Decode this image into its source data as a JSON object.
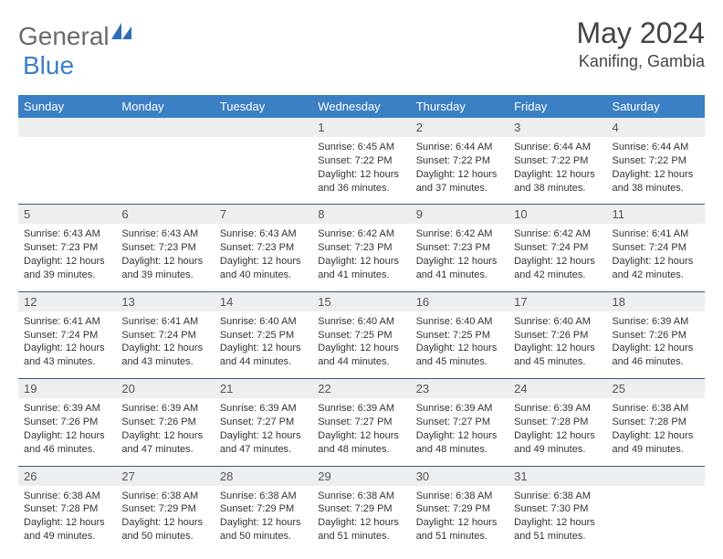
{
  "brand": {
    "part1": "General",
    "part2": "Blue",
    "color_gray": "#6a6a6a",
    "color_blue": "#3b7fc4"
  },
  "title": {
    "month": "May 2024",
    "location": "Kanifing, Gambia"
  },
  "colors": {
    "header_bg": "#3b7fc4",
    "header_text": "#ffffff",
    "num_bg": "#eceeef",
    "num_border": "#3b5a7a",
    "body_text": "#333333"
  },
  "weekdays": [
    "Sunday",
    "Monday",
    "Tuesday",
    "Wednesday",
    "Thursday",
    "Friday",
    "Saturday"
  ],
  "weeks": [
    {
      "nums": [
        "",
        "",
        "",
        "1",
        "2",
        "3",
        "4"
      ],
      "cells": [
        null,
        null,
        null,
        {
          "sunrise": "Sunrise: 6:45 AM",
          "sunset": "Sunset: 7:22 PM",
          "day1": "Daylight: 12 hours",
          "day2": "and 36 minutes."
        },
        {
          "sunrise": "Sunrise: 6:44 AM",
          "sunset": "Sunset: 7:22 PM",
          "day1": "Daylight: 12 hours",
          "day2": "and 37 minutes."
        },
        {
          "sunrise": "Sunrise: 6:44 AM",
          "sunset": "Sunset: 7:22 PM",
          "day1": "Daylight: 12 hours",
          "day2": "and 38 minutes."
        },
        {
          "sunrise": "Sunrise: 6:44 AM",
          "sunset": "Sunset: 7:22 PM",
          "day1": "Daylight: 12 hours",
          "day2": "and 38 minutes."
        }
      ]
    },
    {
      "nums": [
        "5",
        "6",
        "7",
        "8",
        "9",
        "10",
        "11"
      ],
      "cells": [
        {
          "sunrise": "Sunrise: 6:43 AM",
          "sunset": "Sunset: 7:23 PM",
          "day1": "Daylight: 12 hours",
          "day2": "and 39 minutes."
        },
        {
          "sunrise": "Sunrise: 6:43 AM",
          "sunset": "Sunset: 7:23 PM",
          "day1": "Daylight: 12 hours",
          "day2": "and 39 minutes."
        },
        {
          "sunrise": "Sunrise: 6:43 AM",
          "sunset": "Sunset: 7:23 PM",
          "day1": "Daylight: 12 hours",
          "day2": "and 40 minutes."
        },
        {
          "sunrise": "Sunrise: 6:42 AM",
          "sunset": "Sunset: 7:23 PM",
          "day1": "Daylight: 12 hours",
          "day2": "and 41 minutes."
        },
        {
          "sunrise": "Sunrise: 6:42 AM",
          "sunset": "Sunset: 7:23 PM",
          "day1": "Daylight: 12 hours",
          "day2": "and 41 minutes."
        },
        {
          "sunrise": "Sunrise: 6:42 AM",
          "sunset": "Sunset: 7:24 PM",
          "day1": "Daylight: 12 hours",
          "day2": "and 42 minutes."
        },
        {
          "sunrise": "Sunrise: 6:41 AM",
          "sunset": "Sunset: 7:24 PM",
          "day1": "Daylight: 12 hours",
          "day2": "and 42 minutes."
        }
      ]
    },
    {
      "nums": [
        "12",
        "13",
        "14",
        "15",
        "16",
        "17",
        "18"
      ],
      "cells": [
        {
          "sunrise": "Sunrise: 6:41 AM",
          "sunset": "Sunset: 7:24 PM",
          "day1": "Daylight: 12 hours",
          "day2": "and 43 minutes."
        },
        {
          "sunrise": "Sunrise: 6:41 AM",
          "sunset": "Sunset: 7:24 PM",
          "day1": "Daylight: 12 hours",
          "day2": "and 43 minutes."
        },
        {
          "sunrise": "Sunrise: 6:40 AM",
          "sunset": "Sunset: 7:25 PM",
          "day1": "Daylight: 12 hours",
          "day2": "and 44 minutes."
        },
        {
          "sunrise": "Sunrise: 6:40 AM",
          "sunset": "Sunset: 7:25 PM",
          "day1": "Daylight: 12 hours",
          "day2": "and 44 minutes."
        },
        {
          "sunrise": "Sunrise: 6:40 AM",
          "sunset": "Sunset: 7:25 PM",
          "day1": "Daylight: 12 hours",
          "day2": "and 45 minutes."
        },
        {
          "sunrise": "Sunrise: 6:40 AM",
          "sunset": "Sunset: 7:26 PM",
          "day1": "Daylight: 12 hours",
          "day2": "and 45 minutes."
        },
        {
          "sunrise": "Sunrise: 6:39 AM",
          "sunset": "Sunset: 7:26 PM",
          "day1": "Daylight: 12 hours",
          "day2": "and 46 minutes."
        }
      ]
    },
    {
      "nums": [
        "19",
        "20",
        "21",
        "22",
        "23",
        "24",
        "25"
      ],
      "cells": [
        {
          "sunrise": "Sunrise: 6:39 AM",
          "sunset": "Sunset: 7:26 PM",
          "day1": "Daylight: 12 hours",
          "day2": "and 46 minutes."
        },
        {
          "sunrise": "Sunrise: 6:39 AM",
          "sunset": "Sunset: 7:26 PM",
          "day1": "Daylight: 12 hours",
          "day2": "and 47 minutes."
        },
        {
          "sunrise": "Sunrise: 6:39 AM",
          "sunset": "Sunset: 7:27 PM",
          "day1": "Daylight: 12 hours",
          "day2": "and 47 minutes."
        },
        {
          "sunrise": "Sunrise: 6:39 AM",
          "sunset": "Sunset: 7:27 PM",
          "day1": "Daylight: 12 hours",
          "day2": "and 48 minutes."
        },
        {
          "sunrise": "Sunrise: 6:39 AM",
          "sunset": "Sunset: 7:27 PM",
          "day1": "Daylight: 12 hours",
          "day2": "and 48 minutes."
        },
        {
          "sunrise": "Sunrise: 6:39 AM",
          "sunset": "Sunset: 7:28 PM",
          "day1": "Daylight: 12 hours",
          "day2": "and 49 minutes."
        },
        {
          "sunrise": "Sunrise: 6:38 AM",
          "sunset": "Sunset: 7:28 PM",
          "day1": "Daylight: 12 hours",
          "day2": "and 49 minutes."
        }
      ]
    },
    {
      "nums": [
        "26",
        "27",
        "28",
        "29",
        "30",
        "31",
        ""
      ],
      "cells": [
        {
          "sunrise": "Sunrise: 6:38 AM",
          "sunset": "Sunset: 7:28 PM",
          "day1": "Daylight: 12 hours",
          "day2": "and 49 minutes."
        },
        {
          "sunrise": "Sunrise: 6:38 AM",
          "sunset": "Sunset: 7:29 PM",
          "day1": "Daylight: 12 hours",
          "day2": "and 50 minutes."
        },
        {
          "sunrise": "Sunrise: 6:38 AM",
          "sunset": "Sunset: 7:29 PM",
          "day1": "Daylight: 12 hours",
          "day2": "and 50 minutes."
        },
        {
          "sunrise": "Sunrise: 6:38 AM",
          "sunset": "Sunset: 7:29 PM",
          "day1": "Daylight: 12 hours",
          "day2": "and 51 minutes."
        },
        {
          "sunrise": "Sunrise: 6:38 AM",
          "sunset": "Sunset: 7:29 PM",
          "day1": "Daylight: 12 hours",
          "day2": "and 51 minutes."
        },
        {
          "sunrise": "Sunrise: 6:38 AM",
          "sunset": "Sunset: 7:30 PM",
          "day1": "Daylight: 12 hours",
          "day2": "and 51 minutes."
        },
        null
      ]
    }
  ]
}
